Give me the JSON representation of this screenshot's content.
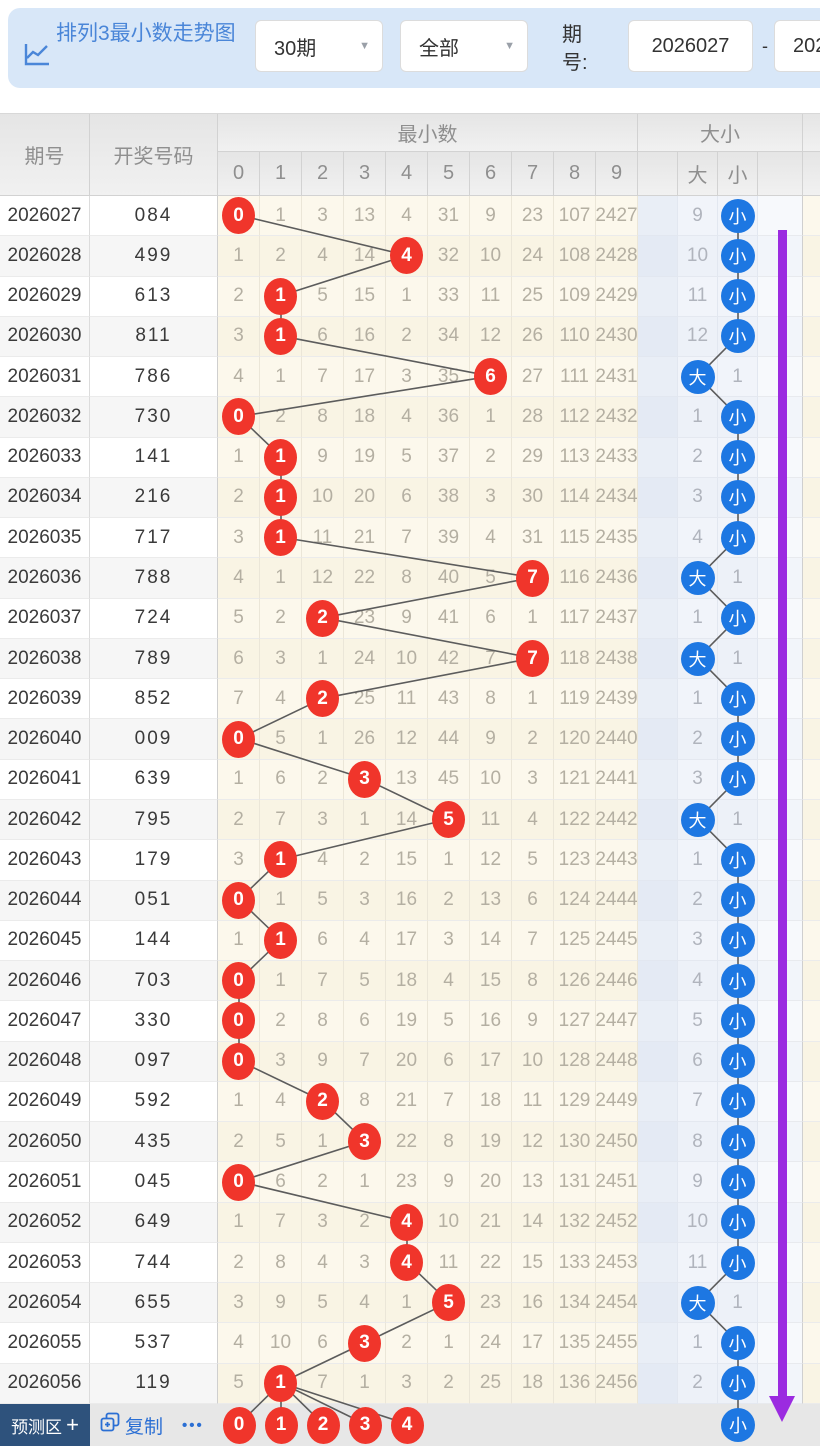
{
  "header": {
    "title": "排列3最小数走势图",
    "range_select": "30期",
    "filter_select": "全部",
    "caret": "▼",
    "period_label": "期号:",
    "period_from": "2026027",
    "separator": "-",
    "period_to": "202"
  },
  "table": {
    "col_period": "期号",
    "col_number": "开奖号码",
    "group_min": "最小数",
    "group_size": "大小",
    "digit_cols": [
      "0",
      "1",
      "2",
      "3",
      "4",
      "5",
      "6",
      "7",
      "8",
      "9"
    ],
    "big_label": "大",
    "small_label": "小"
  },
  "rows": [
    {
      "period": "2026027",
      "number": "084",
      "cells": [
        "0",
        "1",
        "3",
        "13",
        "4",
        "31",
        "9",
        "23",
        "107",
        "2427"
      ],
      "min_digit": 0,
      "size_marked": "small",
      "big_text": "9",
      "small_text": "小"
    },
    {
      "period": "2026028",
      "number": "499",
      "cells": [
        "1",
        "2",
        "4",
        "14",
        "4",
        "32",
        "10",
        "24",
        "108",
        "2428"
      ],
      "min_digit": 4,
      "size_marked": "small",
      "big_text": "10",
      "small_text": "小"
    },
    {
      "period": "2026029",
      "number": "613",
      "cells": [
        "2",
        "1",
        "5",
        "15",
        "1",
        "33",
        "11",
        "25",
        "109",
        "2429"
      ],
      "min_digit": 1,
      "size_marked": "small",
      "big_text": "11",
      "small_text": "小"
    },
    {
      "period": "2026030",
      "number": "811",
      "cells": [
        "3",
        "1",
        "6",
        "16",
        "2",
        "34",
        "12",
        "26",
        "110",
        "2430"
      ],
      "min_digit": 1,
      "size_marked": "small",
      "big_text": "12",
      "small_text": "小"
    },
    {
      "period": "2026031",
      "number": "786",
      "cells": [
        "4",
        "1",
        "7",
        "17",
        "3",
        "35",
        "6",
        "27",
        "111",
        "2431"
      ],
      "min_digit": 6,
      "size_marked": "big",
      "big_text": "大",
      "small_text": "1"
    },
    {
      "period": "2026032",
      "number": "730",
      "cells": [
        "0",
        "2",
        "8",
        "18",
        "4",
        "36",
        "1",
        "28",
        "112",
        "2432"
      ],
      "min_digit": 0,
      "size_marked": "small",
      "big_text": "1",
      "small_text": "小"
    },
    {
      "period": "2026033",
      "number": "141",
      "cells": [
        "1",
        "1",
        "9",
        "19",
        "5",
        "37",
        "2",
        "29",
        "113",
        "2433"
      ],
      "min_digit": 1,
      "size_marked": "small",
      "big_text": "2",
      "small_text": "小"
    },
    {
      "period": "2026034",
      "number": "216",
      "cells": [
        "2",
        "1",
        "10",
        "20",
        "6",
        "38",
        "3",
        "30",
        "114",
        "2434"
      ],
      "min_digit": 1,
      "size_marked": "small",
      "big_text": "3",
      "small_text": "小"
    },
    {
      "period": "2026035",
      "number": "717",
      "cells": [
        "3",
        "1",
        "11",
        "21",
        "7",
        "39",
        "4",
        "31",
        "115",
        "2435"
      ],
      "min_digit": 1,
      "size_marked": "small",
      "big_text": "4",
      "small_text": "小"
    },
    {
      "period": "2026036",
      "number": "788",
      "cells": [
        "4",
        "1",
        "12",
        "22",
        "8",
        "40",
        "5",
        "7",
        "116",
        "2436"
      ],
      "min_digit": 7,
      "size_marked": "big",
      "big_text": "大",
      "small_text": "1"
    },
    {
      "period": "2026037",
      "number": "724",
      "cells": [
        "5",
        "2",
        "2",
        "23",
        "9",
        "41",
        "6",
        "1",
        "117",
        "2437"
      ],
      "min_digit": 2,
      "size_marked": "small",
      "big_text": "1",
      "small_text": "小"
    },
    {
      "period": "2026038",
      "number": "789",
      "cells": [
        "6",
        "3",
        "1",
        "24",
        "10",
        "42",
        "7",
        "7",
        "118",
        "2438"
      ],
      "min_digit": 7,
      "size_marked": "big",
      "big_text": "大",
      "small_text": "1"
    },
    {
      "period": "2026039",
      "number": "852",
      "cells": [
        "7",
        "4",
        "2",
        "25",
        "11",
        "43",
        "8",
        "1",
        "119",
        "2439"
      ],
      "min_digit": 2,
      "size_marked": "small",
      "big_text": "1",
      "small_text": "小"
    },
    {
      "period": "2026040",
      "number": "009",
      "cells": [
        "0",
        "5",
        "1",
        "26",
        "12",
        "44",
        "9",
        "2",
        "120",
        "2440"
      ],
      "min_digit": 0,
      "size_marked": "small",
      "big_text": "2",
      "small_text": "小"
    },
    {
      "period": "2026041",
      "number": "639",
      "cells": [
        "1",
        "6",
        "2",
        "3",
        "13",
        "45",
        "10",
        "3",
        "121",
        "2441"
      ],
      "min_digit": 3,
      "size_marked": "small",
      "big_text": "3",
      "small_text": "小"
    },
    {
      "period": "2026042",
      "number": "795",
      "cells": [
        "2",
        "7",
        "3",
        "1",
        "14",
        "5",
        "11",
        "4",
        "122",
        "2442"
      ],
      "min_digit": 5,
      "size_marked": "big",
      "big_text": "大",
      "small_text": "1"
    },
    {
      "period": "2026043",
      "number": "179",
      "cells": [
        "3",
        "1",
        "4",
        "2",
        "15",
        "1",
        "12",
        "5",
        "123",
        "2443"
      ],
      "min_digit": 1,
      "size_marked": "small",
      "big_text": "1",
      "small_text": "小"
    },
    {
      "period": "2026044",
      "number": "051",
      "cells": [
        "0",
        "1",
        "5",
        "3",
        "16",
        "2",
        "13",
        "6",
        "124",
        "2444"
      ],
      "min_digit": 0,
      "size_marked": "small",
      "big_text": "2",
      "small_text": "小"
    },
    {
      "period": "2026045",
      "number": "144",
      "cells": [
        "1",
        "1",
        "6",
        "4",
        "17",
        "3",
        "14",
        "7",
        "125",
        "2445"
      ],
      "min_digit": 1,
      "size_marked": "small",
      "big_text": "3",
      "small_text": "小"
    },
    {
      "period": "2026046",
      "number": "703",
      "cells": [
        "0",
        "1",
        "7",
        "5",
        "18",
        "4",
        "15",
        "8",
        "126",
        "2446"
      ],
      "min_digit": 0,
      "size_marked": "small",
      "big_text": "4",
      "small_text": "小"
    },
    {
      "period": "2026047",
      "number": "330",
      "cells": [
        "0",
        "2",
        "8",
        "6",
        "19",
        "5",
        "16",
        "9",
        "127",
        "2447"
      ],
      "min_digit": 0,
      "size_marked": "small",
      "big_text": "5",
      "small_text": "小"
    },
    {
      "period": "2026048",
      "number": "097",
      "cells": [
        "0",
        "3",
        "9",
        "7",
        "20",
        "6",
        "17",
        "10",
        "128",
        "2448"
      ],
      "min_digit": 0,
      "size_marked": "small",
      "big_text": "6",
      "small_text": "小"
    },
    {
      "period": "2026049",
      "number": "592",
      "cells": [
        "1",
        "4",
        "2",
        "8",
        "21",
        "7",
        "18",
        "11",
        "129",
        "2449"
      ],
      "min_digit": 2,
      "size_marked": "small",
      "big_text": "7",
      "small_text": "小"
    },
    {
      "period": "2026050",
      "number": "435",
      "cells": [
        "2",
        "5",
        "1",
        "3",
        "22",
        "8",
        "19",
        "12",
        "130",
        "2450"
      ],
      "min_digit": 3,
      "size_marked": "small",
      "big_text": "8",
      "small_text": "小"
    },
    {
      "period": "2026051",
      "number": "045",
      "cells": [
        "0",
        "6",
        "2",
        "1",
        "23",
        "9",
        "20",
        "13",
        "131",
        "2451"
      ],
      "min_digit": 0,
      "size_marked": "small",
      "big_text": "9",
      "small_text": "小"
    },
    {
      "period": "2026052",
      "number": "649",
      "cells": [
        "1",
        "7",
        "3",
        "2",
        "4",
        "10",
        "21",
        "14",
        "132",
        "2452"
      ],
      "min_digit": 4,
      "size_marked": "small",
      "big_text": "10",
      "small_text": "小"
    },
    {
      "period": "2026053",
      "number": "744",
      "cells": [
        "2",
        "8",
        "4",
        "3",
        "4",
        "11",
        "22",
        "15",
        "133",
        "2453"
      ],
      "min_digit": 4,
      "size_marked": "small",
      "big_text": "11",
      "small_text": "小"
    },
    {
      "period": "2026054",
      "number": "655",
      "cells": [
        "3",
        "9",
        "5",
        "4",
        "1",
        "5",
        "23",
        "16",
        "134",
        "2454"
      ],
      "min_digit": 5,
      "size_marked": "big",
      "big_text": "大",
      "small_text": "1"
    },
    {
      "period": "2026055",
      "number": "537",
      "cells": [
        "4",
        "10",
        "6",
        "3",
        "2",
        "1",
        "24",
        "17",
        "135",
        "2455"
      ],
      "min_digit": 3,
      "size_marked": "small",
      "big_text": "1",
      "small_text": "小"
    },
    {
      "period": "2026056",
      "number": "119",
      "cells": [
        "5",
        "1",
        "7",
        "1",
        "3",
        "2",
        "25",
        "18",
        "136",
        "2456"
      ],
      "min_digit": 1,
      "size_marked": "small",
      "big_text": "2",
      "small_text": "小"
    }
  ],
  "footer": {
    "predict_label": "预测区",
    "plus": "+",
    "copy_label": "复制",
    "more_label": "•••",
    "predict_digits": [
      "0",
      "1",
      "2",
      "3",
      "4"
    ],
    "predict_size": "小"
  },
  "colors": {
    "accent_blue": "#2b6fd4",
    "title_blue": "#4a86d8",
    "circle_red": "#f0352b",
    "circle_blue": "#1d77e2",
    "arrow_purple": "#9b2be0",
    "topbar_bg": "#d8e7f8",
    "predict_bg": "#2e527c",
    "min_area_bg": "#fcf8ec",
    "line_gray": "#5c5c5c"
  }
}
